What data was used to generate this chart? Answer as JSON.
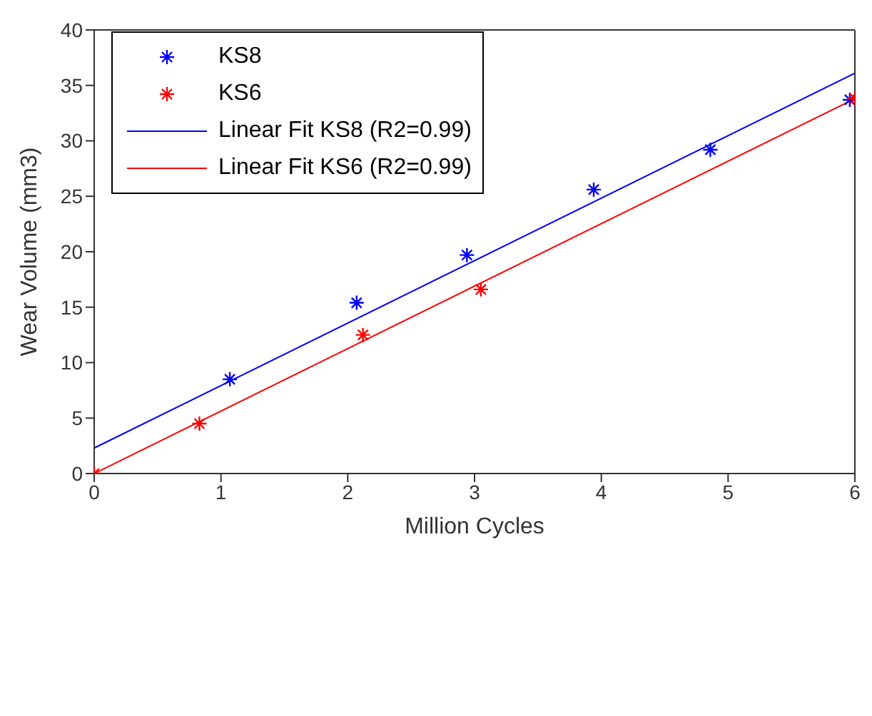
{
  "chart_data": {
    "type": "scatter",
    "xlabel": "Million Cycles",
    "ylabel": "Wear Volume (mm3)",
    "xlim": [
      0,
      6
    ],
    "ylim": [
      0,
      40
    ],
    "xticks": [
      0,
      1,
      2,
      3,
      4,
      5,
      6
    ],
    "yticks": [
      0,
      5,
      10,
      15,
      20,
      25,
      30,
      35,
      40
    ],
    "legend": "top left",
    "marker": "cross",
    "series": [
      {
        "name": "KS8",
        "color": "#0000ff",
        "x": [
          1.07,
          2.07,
          2.94,
          3.94,
          4.86,
          5.96
        ],
        "values": [
          8.5,
          15.4,
          19.7,
          25.6,
          29.2,
          33.7
        ]
      },
      {
        "name": "KS6",
        "color": "#ff0000",
        "x": [
          0,
          0.83,
          2.12,
          3.05,
          6.0
        ],
        "values": [
          0,
          4.5,
          12.5,
          16.6,
          33.8
        ]
      },
      {
        "name": "Linear Fit KS8 (R2=0.99)",
        "type": "line",
        "marker": "none",
        "line_style": "solid",
        "color": "#0000ff",
        "x": [
          0,
          6
        ],
        "values": [
          2.3,
          36.1
        ]
      },
      {
        "name": "Linear Fit KS6 (R2=0.99)",
        "type": "line",
        "marker": "none",
        "line_style": "solid",
        "color": "#ff0000",
        "x": [
          0,
          6
        ],
        "values": [
          0,
          33.8
        ]
      }
    ]
  }
}
